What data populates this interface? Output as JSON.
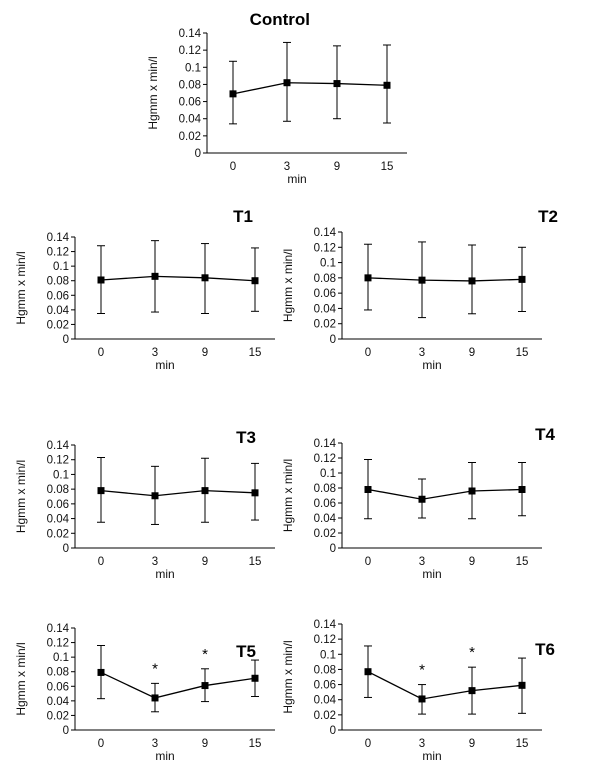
{
  "chart_data": [
    {
      "type": "line",
      "title": "Control",
      "xlabel": "min",
      "ylabel": "Hgmm x min/l",
      "categories": [
        "0",
        "3",
        "9",
        "15"
      ],
      "values": [
        0.069,
        0.082,
        0.081,
        0.079
      ],
      "error_low": [
        0.034,
        0.037,
        0.04,
        0.035
      ],
      "error_high": [
        0.107,
        0.129,
        0.125,
        0.126
      ],
      "annotations": [
        "",
        "",
        "",
        ""
      ],
      "ylim": [
        0,
        0.14
      ],
      "yticks": [
        "0",
        "0.02",
        "0.04",
        "0.06",
        "0.08",
        "0.1",
        "0.12",
        "0.14"
      ],
      "grid": false
    },
    {
      "type": "line",
      "title": "T1",
      "xlabel": "min",
      "ylabel": "Hgmm x min/l",
      "categories": [
        "0",
        "3",
        "9",
        "15"
      ],
      "values": [
        0.081,
        0.086,
        0.084,
        0.08
      ],
      "error_low": [
        0.035,
        0.037,
        0.035,
        0.038
      ],
      "error_high": [
        0.128,
        0.135,
        0.131,
        0.125
      ],
      "annotations": [
        "",
        "",
        "",
        ""
      ],
      "ylim": [
        0,
        0.14
      ],
      "yticks": [
        "0",
        "0.02",
        "0.04",
        "0.06",
        "0.08",
        "0.1",
        "0.12",
        "0.14"
      ],
      "grid": false
    },
    {
      "type": "line",
      "title": "T2",
      "xlabel": "min",
      "ylabel": "Hgmm x min/l",
      "categories": [
        "0",
        "3",
        "9",
        "15"
      ],
      "values": [
        0.08,
        0.077,
        0.076,
        0.078
      ],
      "error_low": [
        0.038,
        0.028,
        0.033,
        0.036
      ],
      "error_high": [
        0.124,
        0.127,
        0.123,
        0.12
      ],
      "annotations": [
        "",
        "",
        "",
        ""
      ],
      "ylim": [
        0,
        0.14
      ],
      "yticks": [
        "0",
        "0.02",
        "0.04",
        "0.06",
        "0.08",
        "0.1",
        "0.12",
        "0.14"
      ],
      "grid": false
    },
    {
      "type": "line",
      "title": "T3",
      "xlabel": "min",
      "ylabel": "Hgmm x min/l",
      "categories": [
        "0",
        "3",
        "9",
        "15"
      ],
      "values": [
        0.078,
        0.071,
        0.078,
        0.075
      ],
      "error_low": [
        0.035,
        0.032,
        0.035,
        0.038
      ],
      "error_high": [
        0.123,
        0.111,
        0.122,
        0.115
      ],
      "annotations": [
        "",
        "",
        "",
        ""
      ],
      "ylim": [
        0,
        0.14
      ],
      "yticks": [
        "0",
        "0.02",
        "0.04",
        "0.06",
        "0.08",
        "0.1",
        "0.12",
        "0.14"
      ],
      "grid": false
    },
    {
      "type": "line",
      "title": "T4",
      "xlabel": "min",
      "ylabel": "Hgmm x min/l",
      "categories": [
        "0",
        "3",
        "9",
        "15"
      ],
      "values": [
        0.078,
        0.065,
        0.076,
        0.078
      ],
      "error_low": [
        0.039,
        0.04,
        0.039,
        0.043
      ],
      "error_high": [
        0.118,
        0.092,
        0.114,
        0.114
      ],
      "annotations": [
        "",
        "",
        "",
        ""
      ],
      "ylim": [
        0,
        0.14
      ],
      "yticks": [
        "0",
        "0.02",
        "0.04",
        "0.06",
        "0.08",
        "0.1",
        "0.12",
        "0.14"
      ],
      "grid": false
    },
    {
      "type": "line",
      "title": "T5",
      "xlabel": "min",
      "ylabel": "Hgmm x min/l",
      "categories": [
        "0",
        "3",
        "9",
        "15"
      ],
      "values": [
        0.079,
        0.044,
        0.061,
        0.071
      ],
      "error_low": [
        0.043,
        0.025,
        0.039,
        0.046
      ],
      "error_high": [
        0.116,
        0.064,
        0.084,
        0.096
      ],
      "annotations": [
        "",
        "*",
        "*",
        ""
      ],
      "ylim": [
        0,
        0.14
      ],
      "yticks": [
        "0",
        "0.02",
        "0.04",
        "0.06",
        "0.08",
        "0.1",
        "0.12",
        "0.14"
      ],
      "grid": false
    },
    {
      "type": "line",
      "title": "T6",
      "xlabel": "min",
      "ylabel": "Hgmm x min/l",
      "categories": [
        "0",
        "3",
        "9",
        "15"
      ],
      "values": [
        0.077,
        0.041,
        0.052,
        0.059
      ],
      "error_low": [
        0.043,
        0.021,
        0.021,
        0.022
      ],
      "error_high": [
        0.111,
        0.06,
        0.083,
        0.095
      ],
      "annotations": [
        "",
        "*",
        "*",
        ""
      ],
      "ylim": [
        0,
        0.14
      ],
      "yticks": [
        "0",
        "0.02",
        "0.04",
        "0.06",
        "0.08",
        "0.1",
        "0.12",
        "0.14"
      ],
      "grid": false
    }
  ]
}
